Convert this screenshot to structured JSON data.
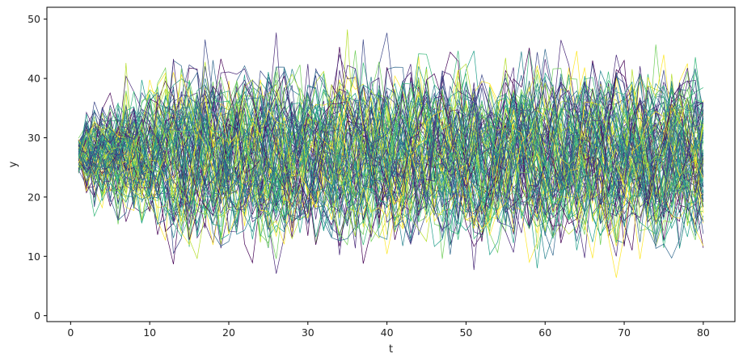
{
  "chart_data": {
    "type": "line",
    "title": "",
    "xlabel": "t",
    "ylabel": "y",
    "xlim": [
      -3.0,
      84.0
    ],
    "ylim": [
      -1.0,
      52.0
    ],
    "x_ticks": [
      0,
      10,
      20,
      30,
      40,
      50,
      60,
      70,
      80
    ],
    "x_tick_labels": [
      "0",
      "10",
      "20",
      "30",
      "40",
      "50",
      "60",
      "70",
      "80"
    ],
    "y_ticks": [
      0,
      10,
      20,
      30,
      40,
      50
    ],
    "y_tick_labels": [
      "0",
      "10",
      "20",
      "30",
      "40",
      "50"
    ],
    "grid": false,
    "legend": "none",
    "x": [
      1,
      2,
      3,
      4,
      5,
      6,
      7,
      8,
      9,
      10,
      11,
      12,
      13,
      14,
      15,
      16,
      17,
      18,
      19,
      20,
      21,
      22,
      23,
      24,
      25,
      26,
      27,
      28,
      29,
      30,
      31,
      32,
      33,
      34,
      35,
      36,
      37,
      38,
      39,
      40,
      41,
      42,
      43,
      44,
      45,
      46,
      47,
      48,
      49,
      50,
      51,
      52,
      53,
      54,
      55,
      56,
      57,
      58,
      59,
      60,
      61,
      62,
      63,
      64,
      65,
      66,
      67,
      68,
      69,
      70,
      71,
      72,
      73,
      74,
      75,
      76,
      77,
      78,
      79,
      80
    ],
    "series_count": 100,
    "colormap": "viridis",
    "series_start_value": 27,
    "series_value_range": [
      1.5,
      49.5
    ],
    "line_width": 0.7
  },
  "colors": {
    "viridis": [
      "#440154",
      "#482878",
      "#3e4989",
      "#31688e",
      "#26828e",
      "#1f9e89",
      "#35b779",
      "#6ece58",
      "#b5de2b",
      "#fde725"
    ],
    "axis": "#000000",
    "background": "#ffffff"
  }
}
